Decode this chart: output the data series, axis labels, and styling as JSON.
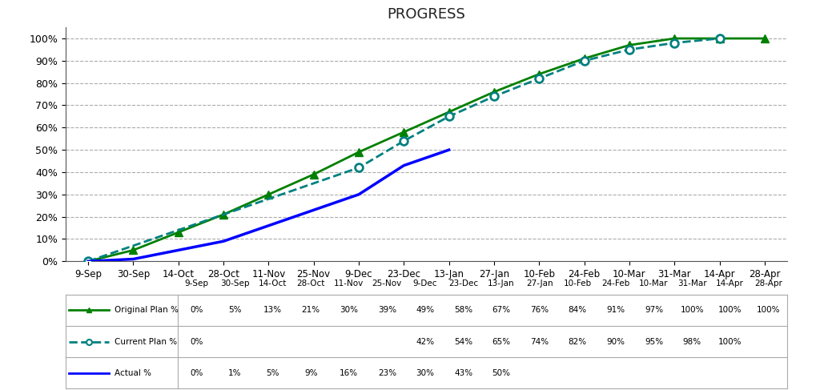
{
  "title": "PROGRESS",
  "categories": [
    "9-Sep",
    "30-Sep",
    "14-Oct",
    "28-Oct",
    "11-Nov",
    "25-Nov",
    "9-Dec",
    "23-Dec",
    "13-Jan",
    "27-Jan",
    "10-Feb",
    "24-Feb",
    "10-Mar",
    "31-Mar",
    "14-Apr",
    "28-Apr"
  ],
  "original_plan": [
    0,
    5,
    13,
    21,
    30,
    39,
    49,
    58,
    67,
    76,
    84,
    91,
    97,
    100,
    100,
    100
  ],
  "current_plan": [
    0,
    null,
    null,
    null,
    null,
    null,
    42,
    54,
    65,
    74,
    82,
    90,
    95,
    98,
    100,
    null
  ],
  "actual": [
    0,
    1,
    5,
    9,
    16,
    23,
    30,
    43,
    50,
    null,
    null,
    null,
    null,
    null,
    null,
    null
  ],
  "original_plan_color": "#008000",
  "current_plan_color": "#008080",
  "actual_color": "#0000FF",
  "ylim": [
    0,
    1.05
  ],
  "yticks": [
    0,
    0.1,
    0.2,
    0.3,
    0.4,
    0.5,
    0.6,
    0.7,
    0.8,
    0.9,
    1.0
  ],
  "ytick_labels": [
    "0%",
    "10%",
    "20%",
    "30%",
    "40%",
    "50%",
    "60%",
    "70%",
    "80%",
    "90%",
    "100%"
  ],
  "table_original_plan_str": [
    "0%",
    "5%",
    "13%",
    "21%",
    "30%",
    "39%",
    "49%",
    "58%",
    "67%",
    "76%",
    "84%",
    "91%",
    "97%",
    "100%",
    "100%",
    "100%"
  ],
  "table_current_plan_str": [
    "0%",
    "",
    "",
    "",
    "",
    "",
    "42%",
    "54%",
    "65%",
    "74%",
    "82%",
    "90%",
    "95%",
    "98%",
    "100%",
    ""
  ],
  "table_actual_str": [
    "0%",
    "1%",
    "5%",
    "9%",
    "16%",
    "23%",
    "30%",
    "43%",
    "50%",
    "",
    "",
    "",
    "",
    "",
    "",
    ""
  ]
}
